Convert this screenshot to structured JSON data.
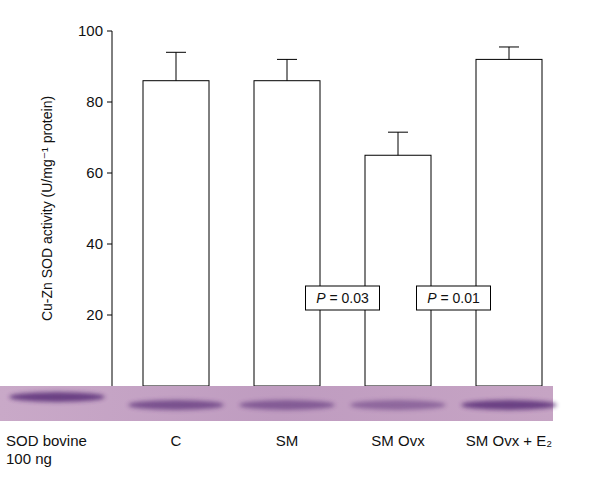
{
  "chart_data": {
    "type": "bar",
    "y_label": "Cu-Zn SOD activity (U/mg⁻¹ protein)",
    "categories": [
      "SOD bovine 100 ng",
      "C",
      "SM",
      "SM Ovx",
      "SM Ovx + E₂"
    ],
    "values": [
      null,
      86,
      86,
      65,
      92
    ],
    "errors": [
      null,
      8,
      6,
      6.5,
      3.5
    ],
    "color": "#ffffff",
    "ylim": [
      0,
      100
    ],
    "yticks": [
      20,
      40,
      60,
      80,
      100
    ],
    "annotations": [
      "P = 0.03",
      "P = 0.01"
    ]
  }
}
